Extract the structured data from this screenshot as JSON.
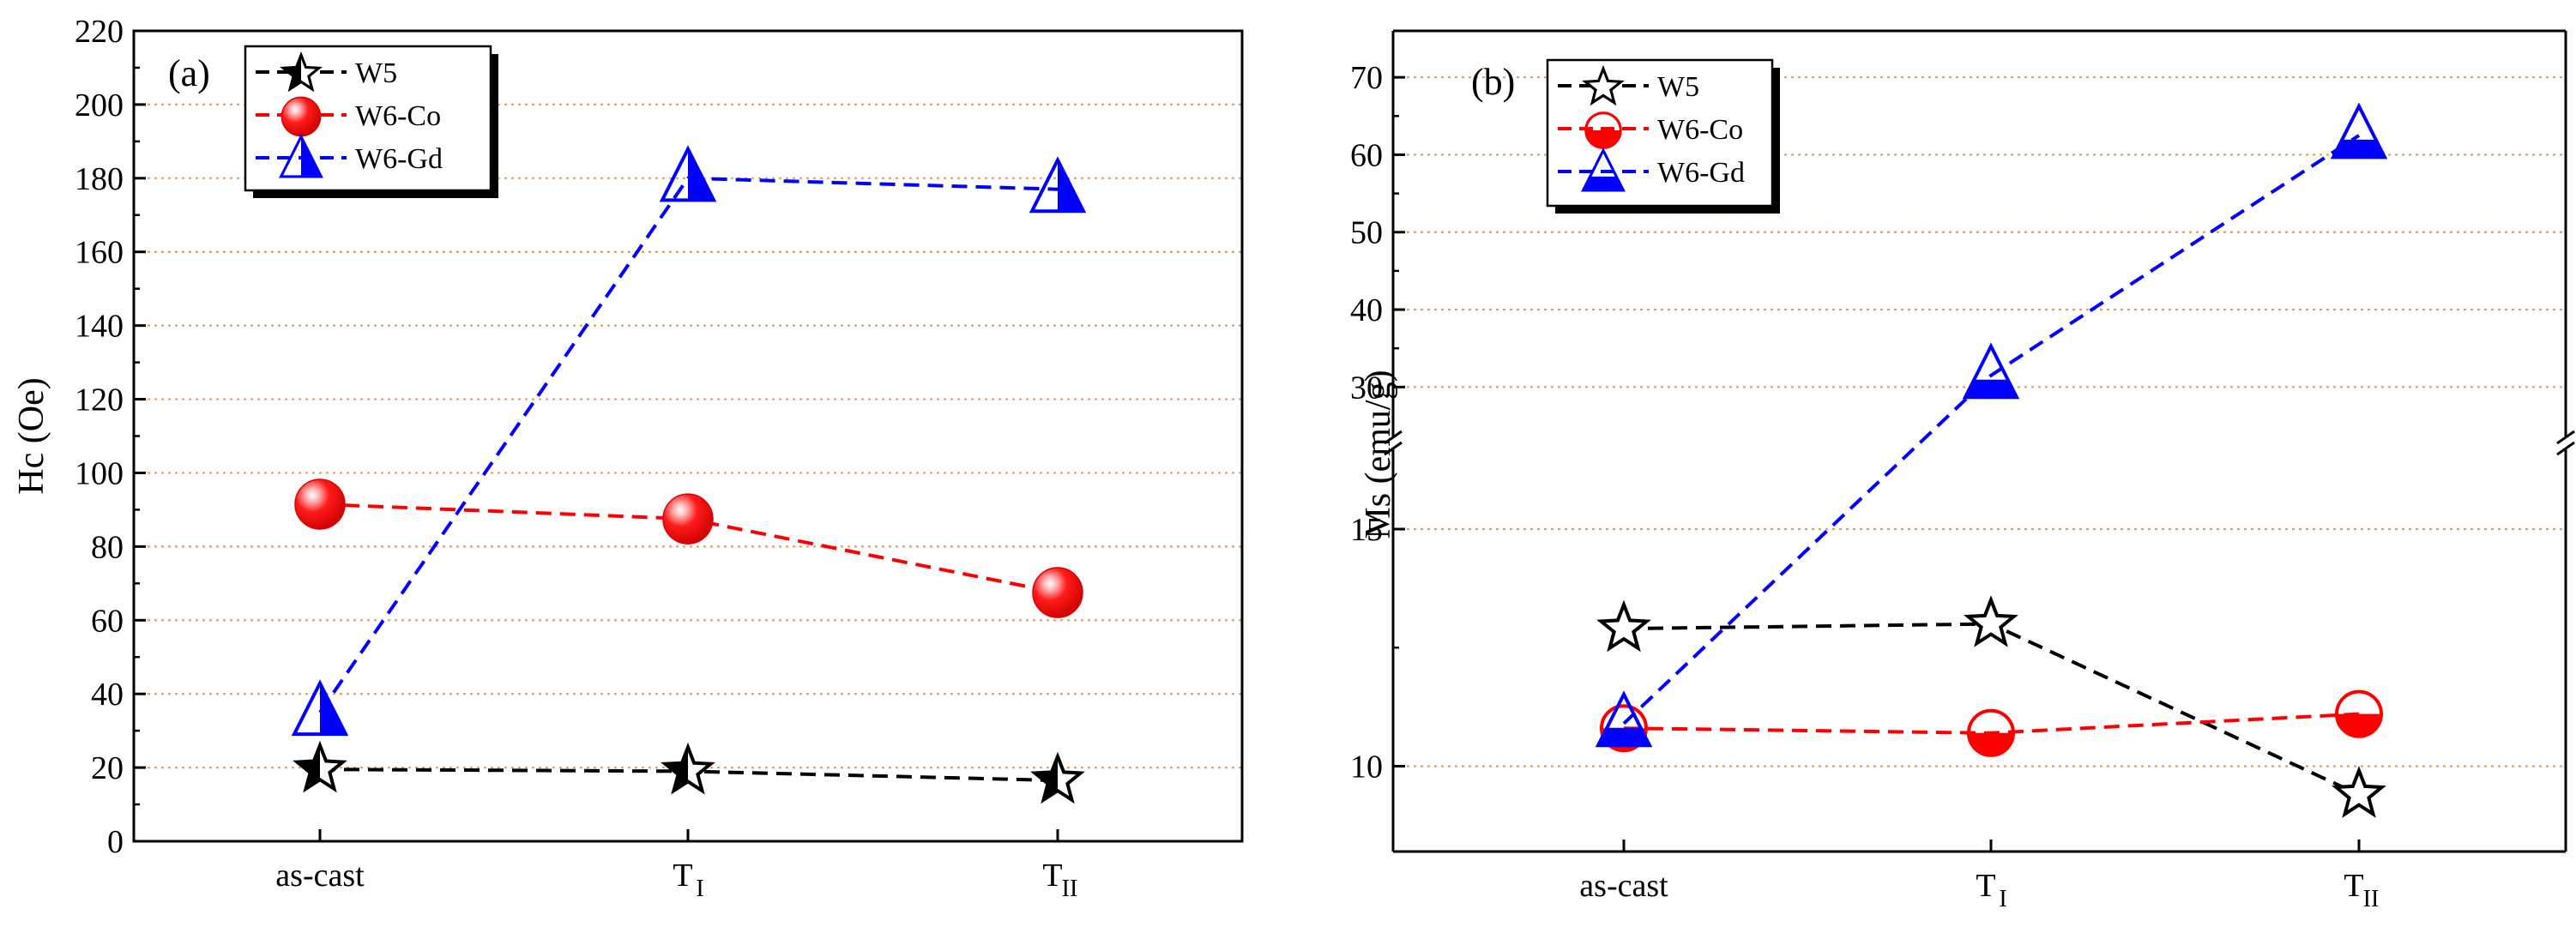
{
  "chart_data": [
    {
      "type": "line",
      "panel_label": "(a)",
      "title": "",
      "xlabel": "",
      "ylabel": "Hc (Oe)",
      "categories": [
        {
          "main": "as-cast",
          "sub": ""
        },
        {
          "main": "T",
          "sub": "I"
        },
        {
          "main": "T",
          "sub": "II"
        }
      ],
      "ylim": [
        0,
        220
      ],
      "yticks": [
        0,
        20,
        40,
        60,
        80,
        100,
        120,
        140,
        160,
        180,
        200,
        220
      ],
      "grid": "horizontal dotted",
      "legend_position": "top-left",
      "series": [
        {
          "name": "W5",
          "color": "#000000",
          "marker": "star-half",
          "values": [
            19.5,
            19,
            16.5
          ]
        },
        {
          "name": "W6-Co",
          "color": "#ff0000",
          "marker": "sphere",
          "values": [
            91.5,
            87.5,
            67.5
          ]
        },
        {
          "name": "W6-Gd",
          "color": "#0000ff",
          "marker": "triangle-half",
          "values": [
            35,
            180,
            177
          ]
        }
      ]
    },
    {
      "type": "line",
      "panel_label": "(b)",
      "title": "",
      "xlabel": "",
      "ylabel": "Ms (emu/g)",
      "categories": [
        {
          "main": "as-cast",
          "sub": ""
        },
        {
          "main": "T",
          "sub": "I"
        },
        {
          "main": "T",
          "sub": "II"
        }
      ],
      "axis_break": {
        "lower": [
          8.2,
          16.7
        ],
        "upper": [
          23.5,
          76
        ]
      },
      "yticks_lower": [
        10,
        15
      ],
      "yticks_upper": [
        30,
        40,
        50,
        60,
        70
      ],
      "grid": "horizontal dotted",
      "legend_position": "top-left",
      "series": [
        {
          "name": "W5",
          "color": "#000000",
          "marker": "star-open",
          "values": [
            12.9,
            13,
            9.4
          ]
        },
        {
          "name": "W6-Co",
          "color": "#ff0000",
          "marker": "circle-bottom-filled",
          "values": [
            10.8,
            10.7,
            11.1
          ]
        },
        {
          "name": "W6-Gd",
          "color": "#0000ff",
          "marker": "triangle-bottom-filled",
          "values": [
            10.9,
            31.5,
            62.5
          ]
        }
      ]
    }
  ]
}
